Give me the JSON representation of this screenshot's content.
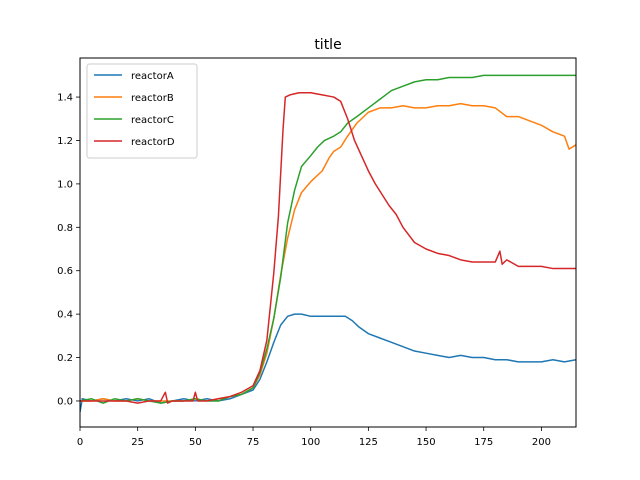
{
  "chart_data": {
    "type": "line",
    "title": "title",
    "xlabel": "",
    "ylabel": "",
    "xlim": [
      0,
      215
    ],
    "ylim": [
      -0.12,
      1.58
    ],
    "xticks": [
      0,
      25,
      50,
      75,
      100,
      125,
      150,
      175,
      200
    ],
    "xtick_labels": [
      "0",
      "25",
      "50",
      "75",
      "100",
      "125",
      "150",
      "175",
      "200"
    ],
    "yticks": [
      0.0,
      0.2,
      0.4,
      0.6,
      0.8,
      1.0,
      1.2,
      1.4
    ],
    "ytick_labels": [
      "0.0",
      "0.2",
      "0.4",
      "0.6",
      "0.8",
      "1.0",
      "1.2",
      "1.4"
    ],
    "grid": false,
    "legend_position": "top-left",
    "series": [
      {
        "name": "reactorA",
        "color": "#1f77b4",
        "points": [
          [
            0,
            -0.05
          ],
          [
            1,
            0.01
          ],
          [
            5,
            0.0
          ],
          [
            10,
            0.01
          ],
          [
            15,
            0.0
          ],
          [
            20,
            0.01
          ],
          [
            25,
            0.0
          ],
          [
            30,
            0.01
          ],
          [
            35,
            -0.01
          ],
          [
            40,
            0.0
          ],
          [
            45,
            0.01
          ],
          [
            50,
            0.0
          ],
          [
            55,
            0.01
          ],
          [
            60,
            0.0
          ],
          [
            65,
            0.01
          ],
          [
            70,
            0.03
          ],
          [
            75,
            0.05
          ],
          [
            78,
            0.1
          ],
          [
            81,
            0.18
          ],
          [
            84,
            0.27
          ],
          [
            87,
            0.35
          ],
          [
            90,
            0.39
          ],
          [
            93,
            0.4
          ],
          [
            96,
            0.4
          ],
          [
            100,
            0.39
          ],
          [
            105,
            0.39
          ],
          [
            110,
            0.39
          ],
          [
            115,
            0.39
          ],
          [
            118,
            0.37
          ],
          [
            121,
            0.34
          ],
          [
            125,
            0.31
          ],
          [
            130,
            0.29
          ],
          [
            135,
            0.27
          ],
          [
            140,
            0.25
          ],
          [
            145,
            0.23
          ],
          [
            150,
            0.22
          ],
          [
            155,
            0.21
          ],
          [
            160,
            0.2
          ],
          [
            165,
            0.21
          ],
          [
            170,
            0.2
          ],
          [
            175,
            0.2
          ],
          [
            180,
            0.19
          ],
          [
            185,
            0.19
          ],
          [
            190,
            0.18
          ],
          [
            195,
            0.18
          ],
          [
            200,
            0.18
          ],
          [
            205,
            0.19
          ],
          [
            210,
            0.18
          ],
          [
            215,
            0.19
          ]
        ]
      },
      {
        "name": "reactorB",
        "color": "#ff7f0e",
        "points": [
          [
            0,
            0.0
          ],
          [
            5,
            0.0
          ],
          [
            10,
            0.01
          ],
          [
            15,
            0.0
          ],
          [
            20,
            0.0
          ],
          [
            25,
            0.01
          ],
          [
            30,
            0.0
          ],
          [
            35,
            0.0
          ],
          [
            40,
            0.0
          ],
          [
            45,
            0.0
          ],
          [
            50,
            0.01
          ],
          [
            55,
            0.0
          ],
          [
            60,
            0.01
          ],
          [
            65,
            0.02
          ],
          [
            70,
            0.03
          ],
          [
            75,
            0.06
          ],
          [
            78,
            0.12
          ],
          [
            81,
            0.22
          ],
          [
            84,
            0.38
          ],
          [
            87,
            0.58
          ],
          [
            90,
            0.75
          ],
          [
            93,
            0.88
          ],
          [
            96,
            0.96
          ],
          [
            100,
            1.01
          ],
          [
            105,
            1.06
          ],
          [
            108,
            1.12
          ],
          [
            110,
            1.15
          ],
          [
            113,
            1.17
          ],
          [
            116,
            1.22
          ],
          [
            120,
            1.28
          ],
          [
            125,
            1.33
          ],
          [
            130,
            1.35
          ],
          [
            135,
            1.35
          ],
          [
            140,
            1.36
          ],
          [
            145,
            1.35
          ],
          [
            150,
            1.35
          ],
          [
            155,
            1.36
          ],
          [
            160,
            1.36
          ],
          [
            165,
            1.37
          ],
          [
            170,
            1.36
          ],
          [
            175,
            1.36
          ],
          [
            180,
            1.35
          ],
          [
            185,
            1.31
          ],
          [
            190,
            1.31
          ],
          [
            195,
            1.29
          ],
          [
            200,
            1.27
          ],
          [
            205,
            1.24
          ],
          [
            210,
            1.22
          ],
          [
            212,
            1.16
          ],
          [
            215,
            1.18
          ]
        ]
      },
      {
        "name": "reactorC",
        "color": "#2ca02c",
        "points": [
          [
            0,
            0.0
          ],
          [
            5,
            0.01
          ],
          [
            10,
            -0.01
          ],
          [
            15,
            0.01
          ],
          [
            20,
            0.0
          ],
          [
            25,
            0.01
          ],
          [
            30,
            0.0
          ],
          [
            35,
            -0.01
          ],
          [
            40,
            0.0
          ],
          [
            45,
            0.0
          ],
          [
            50,
            0.01
          ],
          [
            55,
            0.0
          ],
          [
            60,
            0.0
          ],
          [
            65,
            0.02
          ],
          [
            70,
            0.03
          ],
          [
            75,
            0.06
          ],
          [
            78,
            0.13
          ],
          [
            81,
            0.24
          ],
          [
            84,
            0.38
          ],
          [
            87,
            0.57
          ],
          [
            90,
            0.82
          ],
          [
            93,
            0.97
          ],
          [
            96,
            1.08
          ],
          [
            100,
            1.13
          ],
          [
            103,
            1.17
          ],
          [
            106,
            1.2
          ],
          [
            110,
            1.22
          ],
          [
            113,
            1.24
          ],
          [
            116,
            1.28
          ],
          [
            120,
            1.31
          ],
          [
            125,
            1.35
          ],
          [
            130,
            1.39
          ],
          [
            135,
            1.43
          ],
          [
            140,
            1.45
          ],
          [
            145,
            1.47
          ],
          [
            150,
            1.48
          ],
          [
            155,
            1.48
          ],
          [
            160,
            1.49
          ],
          [
            165,
            1.49
          ],
          [
            170,
            1.49
          ],
          [
            175,
            1.5
          ],
          [
            180,
            1.5
          ],
          [
            185,
            1.5
          ],
          [
            190,
            1.5
          ],
          [
            195,
            1.5
          ],
          [
            200,
            1.5
          ],
          [
            205,
            1.5
          ],
          [
            210,
            1.5
          ],
          [
            215,
            1.5
          ]
        ]
      },
      {
        "name": "reactorD",
        "color": "#d62728",
        "points": [
          [
            0,
            0.0
          ],
          [
            5,
            0.0
          ],
          [
            10,
            0.0
          ],
          [
            15,
            0.0
          ],
          [
            20,
            0.0
          ],
          [
            25,
            -0.01
          ],
          [
            30,
            0.0
          ],
          [
            35,
            0.0
          ],
          [
            37,
            0.04
          ],
          [
            38,
            -0.01
          ],
          [
            40,
            0.0
          ],
          [
            45,
            0.0
          ],
          [
            49,
            0.0
          ],
          [
            50,
            0.04
          ],
          [
            51,
            0.0
          ],
          [
            55,
            0.0
          ],
          [
            60,
            0.01
          ],
          [
            65,
            0.02
          ],
          [
            70,
            0.04
          ],
          [
            75,
            0.07
          ],
          [
            78,
            0.14
          ],
          [
            81,
            0.28
          ],
          [
            84,
            0.59
          ],
          [
            86,
            0.85
          ],
          [
            88,
            1.25
          ],
          [
            89,
            1.4
          ],
          [
            91,
            1.41
          ],
          [
            95,
            1.42
          ],
          [
            100,
            1.42
          ],
          [
            105,
            1.41
          ],
          [
            110,
            1.4
          ],
          [
            113,
            1.38
          ],
          [
            116,
            1.3
          ],
          [
            119,
            1.2
          ],
          [
            122,
            1.13
          ],
          [
            125,
            1.06
          ],
          [
            128,
            1.0
          ],
          [
            131,
            0.95
          ],
          [
            134,
            0.9
          ],
          [
            137,
            0.86
          ],
          [
            140,
            0.8
          ],
          [
            145,
            0.73
          ],
          [
            150,
            0.7
          ],
          [
            155,
            0.68
          ],
          [
            160,
            0.67
          ],
          [
            165,
            0.65
          ],
          [
            170,
            0.64
          ],
          [
            175,
            0.64
          ],
          [
            180,
            0.64
          ],
          [
            182,
            0.69
          ],
          [
            183,
            0.63
          ],
          [
            185,
            0.65
          ],
          [
            190,
            0.62
          ],
          [
            195,
            0.62
          ],
          [
            200,
            0.62
          ],
          [
            205,
            0.61
          ],
          [
            210,
            0.61
          ],
          [
            215,
            0.61
          ]
        ]
      }
    ]
  }
}
